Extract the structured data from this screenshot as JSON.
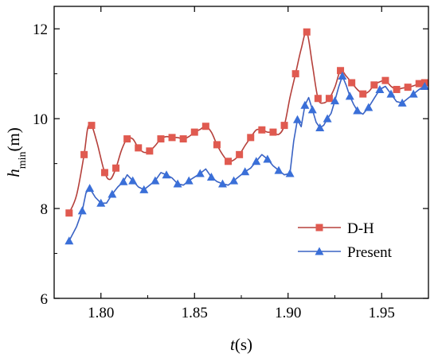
{
  "chart_data": {
    "type": "line",
    "xlabel_var": "t",
    "xlabel_unit": "(s)",
    "ylabel_var": "h",
    "ylabel_sub": "min",
    "ylabel_unit": "(m)",
    "xlim": [
      1.775,
      1.975
    ],
    "ylim": [
      6,
      12.5
    ],
    "xticks": [
      1.8,
      1.85,
      1.9,
      1.95
    ],
    "xtick_labels": [
      "1.80",
      "1.85",
      "1.90",
      "1.95"
    ],
    "yticks": [
      6,
      8,
      10,
      12
    ],
    "ytick_labels": [
      "6",
      "8",
      "10",
      "12"
    ],
    "grid": false,
    "legend": "bottom-right",
    "series": [
      {
        "name": "D-H",
        "color": "#b5403b",
        "marker_color": "#e05a50",
        "marker": "square",
        "x": [
          1.783,
          1.787,
          1.791,
          1.793,
          1.795,
          1.798,
          1.802,
          1.805,
          1.808,
          1.811,
          1.814,
          1.817,
          1.82,
          1.823,
          1.826,
          1.829,
          1.832,
          1.835,
          1.838,
          1.841,
          1.844,
          1.847,
          1.85,
          1.853,
          1.856,
          1.859,
          1.862,
          1.865,
          1.868,
          1.871,
          1.874,
          1.877,
          1.88,
          1.883,
          1.886,
          1.889,
          1.892,
          1.895,
          1.898,
          1.901,
          1.904,
          1.907,
          1.91,
          1.913,
          1.916,
          1.919,
          1.922,
          1.925,
          1.928,
          1.931,
          1.934,
          1.937,
          1.94,
          1.943,
          1.946,
          1.949,
          1.952,
          1.955,
          1.958,
          1.961,
          1.964,
          1.967,
          1.97,
          1.973
        ],
        "y": [
          7.9,
          8.3,
          9.2,
          9.8,
          9.85,
          9.45,
          8.8,
          8.65,
          8.9,
          9.3,
          9.55,
          9.55,
          9.35,
          9.25,
          9.28,
          9.4,
          9.55,
          9.6,
          9.58,
          9.58,
          9.55,
          9.6,
          9.7,
          9.76,
          9.83,
          9.7,
          9.42,
          9.2,
          9.05,
          9.08,
          9.2,
          9.4,
          9.58,
          9.75,
          9.75,
          9.7,
          9.7,
          9.65,
          9.85,
          10.47,
          11.0,
          11.55,
          11.93,
          11.2,
          10.45,
          10.35,
          10.45,
          10.7,
          11.07,
          10.95,
          10.8,
          10.65,
          10.55,
          10.6,
          10.75,
          10.82,
          10.85,
          10.72,
          10.65,
          10.68,
          10.7,
          10.73,
          10.78,
          10.8
        ]
      },
      {
        "name": "Present",
        "color": "#3a63c4",
        "marker_color": "#3a6fd8",
        "marker": "triangle",
        "x": [
          1.783,
          1.787,
          1.79,
          1.792,
          1.794,
          1.797,
          1.8,
          1.803,
          1.806,
          1.809,
          1.812,
          1.814,
          1.817,
          1.82,
          1.823,
          1.826,
          1.829,
          1.832,
          1.835,
          1.838,
          1.841,
          1.844,
          1.847,
          1.85,
          1.853,
          1.856,
          1.859,
          1.862,
          1.865,
          1.868,
          1.871,
          1.874,
          1.877,
          1.88,
          1.883,
          1.886,
          1.889,
          1.892,
          1.895,
          1.898,
          1.901,
          1.903,
          1.905,
          1.907,
          1.909,
          1.911,
          1.913,
          1.915,
          1.917,
          1.919,
          1.921,
          1.923,
          1.925,
          1.927,
          1.929,
          1.931,
          1.933,
          1.935,
          1.937,
          1.94,
          1.943,
          1.946,
          1.949,
          1.952,
          1.955,
          1.958,
          1.961,
          1.964,
          1.967,
          1.97,
          1.973
        ],
        "y": [
          7.28,
          7.6,
          7.95,
          8.35,
          8.45,
          8.25,
          8.12,
          8.12,
          8.32,
          8.48,
          8.6,
          8.75,
          8.62,
          8.48,
          8.42,
          8.52,
          8.62,
          8.8,
          8.75,
          8.68,
          8.55,
          8.52,
          8.62,
          8.7,
          8.78,
          8.88,
          8.7,
          8.6,
          8.55,
          8.52,
          8.62,
          8.72,
          8.82,
          8.9,
          9.05,
          9.2,
          9.1,
          8.95,
          8.85,
          8.75,
          8.78,
          9.5,
          9.98,
          9.82,
          10.3,
          10.47,
          10.2,
          9.92,
          9.8,
          9.85,
          10.0,
          10.12,
          10.4,
          10.7,
          10.95,
          10.75,
          10.5,
          10.32,
          10.18,
          10.1,
          10.25,
          10.45,
          10.65,
          10.72,
          10.55,
          10.38,
          10.35,
          10.45,
          10.55,
          10.65,
          10.72
        ]
      }
    ]
  }
}
